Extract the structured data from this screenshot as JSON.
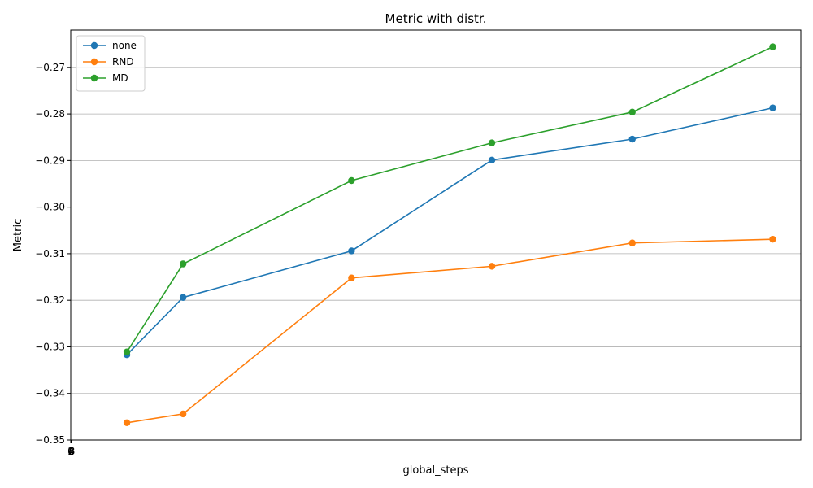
{
  "chart_data": {
    "type": "line",
    "title": "Metric with distr.",
    "xlabel": "global_steps",
    "ylabel": "Metric",
    "x": [
      1,
      2,
      5,
      7.5,
      10,
      12.5
    ],
    "ylim": [
      -0.35,
      -0.262
    ],
    "yticks": [
      -0.35,
      -0.34,
      -0.33,
      -0.32,
      -0.31,
      -0.3,
      -0.29,
      -0.28,
      -0.27
    ],
    "ytick_labels": [
      "−0.35",
      "−0.34",
      "−0.33",
      "−0.32",
      "−0.31",
      "−0.30",
      "−0.29",
      "−0.28",
      "−0.27"
    ],
    "xtick_labels": [
      "0",
      "2",
      "4",
      "6",
      "8"
    ],
    "grid": "horizontal",
    "legend_position": "top-left",
    "markers": true,
    "series": [
      {
        "name": "none",
        "color": "#1f77b4",
        "values": [
          -0.3317,
          -0.3194,
          -0.3094,
          -0.2899,
          -0.2854,
          -0.2787
        ]
      },
      {
        "name": "RND",
        "color": "#ff7f0e",
        "values": [
          -0.3463,
          -0.3444,
          -0.3152,
          -0.3127,
          -0.3077,
          -0.3069
        ]
      },
      {
        "name": "MD",
        "color": "#2ca02c",
        "values": [
          -0.3311,
          -0.3122,
          -0.2943,
          -0.2862,
          -0.2796,
          -0.2656
        ]
      }
    ]
  }
}
